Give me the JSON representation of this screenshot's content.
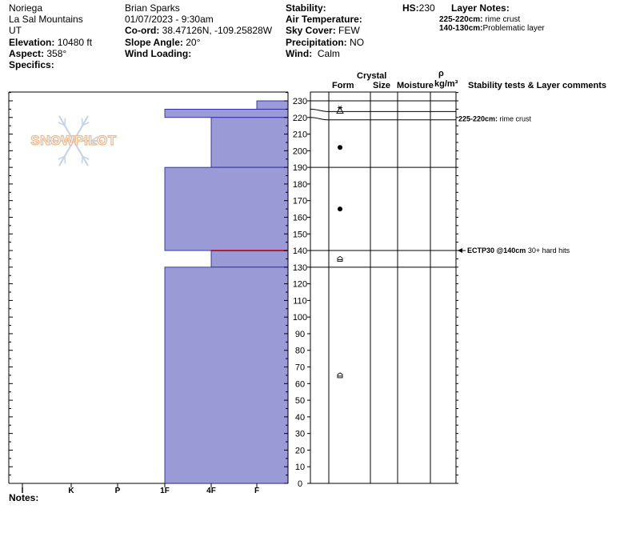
{
  "header": {
    "location_name": "Noriega",
    "range": "La Sal Mountains",
    "state": "UT",
    "elevation_label": "Elevation:",
    "elevation_value": "10480 ft",
    "aspect_label": "Aspect:",
    "aspect_value": "358°",
    "specifics_label": "Specifics:",
    "observer": "Brian Sparks",
    "datetime": "01/07/2023 - 9:30am",
    "coord_label": "Co-ord:",
    "coord_value": "38.47126N, -109.25828W",
    "slope_label": "Slope Angle:",
    "slope_value": "20°",
    "wind_loading_label": "Wind Loading:",
    "stability_label": "Stability:",
    "air_temp_label": "Air Temperature:",
    "sky_label": "Sky Cover:",
    "sky_value": "FEW",
    "precip_label": "Precipitation:",
    "precip_value": "NO",
    "wind_label": "Wind:",
    "wind_value": "Calm",
    "hs_label": "HS:",
    "hs_value": "230",
    "layer_notes_label": "Layer Notes:",
    "layer_notes": [
      {
        "range": "225-220cm:",
        "text": "rime crust"
      },
      {
        "range": "140-130cm:",
        "text": "Problematic layer"
      }
    ]
  },
  "logo_text": "SNOWPILOT",
  "columns": {
    "crystal": "Crystal",
    "form": "Form",
    "size": "Size",
    "moisture": "Moisture",
    "rho": "ρ",
    "density_unit": "kg/m³",
    "comments": "Stability tests & Layer comments"
  },
  "notes_label": "Notes:",
  "comments": [
    {
      "height": 222.5,
      "range": "225-220cm:",
      "text": "rime crust"
    },
    {
      "height": 140,
      "range": "ECTP30 @140cm",
      "text": "30+ hard hits"
    }
  ],
  "colors": {
    "layer_fill": "#9a9ad6",
    "layer_stroke": "#1a1a9a",
    "weak_interface": "#c00000"
  },
  "chart_data": {
    "type": "bar",
    "title": "",
    "xlabel": "",
    "ylabel": "",
    "orientation": "horizontal",
    "hardness_categories": [
      "I",
      "K",
      "P",
      "1F",
      "4F",
      "F"
    ],
    "y_ticks": [
      0,
      10,
      20,
      30,
      40,
      50,
      60,
      70,
      80,
      90,
      100,
      110,
      120,
      130,
      140,
      150,
      160,
      170,
      180,
      190,
      200,
      210,
      220,
      230
    ],
    "ylim": [
      0,
      230
    ],
    "layers": [
      {
        "top": 230,
        "bottom": 225,
        "hardness": "F"
      },
      {
        "top": 225,
        "bottom": 220,
        "hardness": "1F"
      },
      {
        "top": 220,
        "bottom": 190,
        "hardness": "4F"
      },
      {
        "top": 190,
        "bottom": 140,
        "hardness": "1F"
      },
      {
        "top": 140,
        "bottom": 130,
        "hardness": "4F"
      },
      {
        "top": 130,
        "bottom": 0,
        "hardness": "1F"
      }
    ],
    "weak_interface_height": 140,
    "grain_forms": [
      {
        "height": 225,
        "symbol": "surface hoar"
      },
      {
        "height": 202,
        "symbol": "rounds"
      },
      {
        "height": 165,
        "symbol": "rounds"
      },
      {
        "height": 135,
        "symbol": "depth hoar"
      },
      {
        "height": 65,
        "symbol": "depth hoar"
      }
    ]
  }
}
